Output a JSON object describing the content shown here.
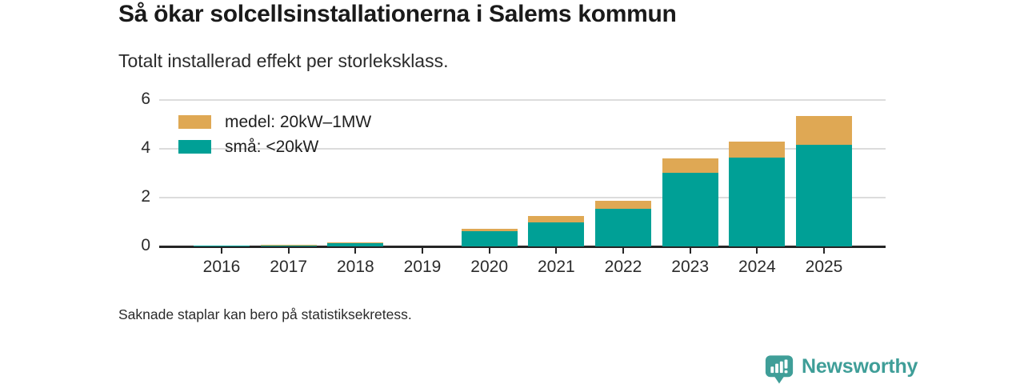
{
  "header": {
    "title": "Så ökar solcellsinstallationerna i Salems kommun",
    "subtitle": "Totalt installerad effekt per storleksklass."
  },
  "footer": {
    "note": "Saknade staplar kan bero på statistiksekretess.",
    "brand_name": "Newsworthy"
  },
  "colors": {
    "small": "#00a096",
    "medium": "#dfa854",
    "grid": "#dcdcdc",
    "axis": "#252525",
    "brand_teal": "#3f9e98"
  },
  "chart_data": {
    "type": "bar",
    "stacked": true,
    "grid": true,
    "legend_position": "top-left",
    "categories": [
      "2016",
      "2017",
      "2018",
      "2019",
      "2020",
      "2021",
      "2022",
      "2023",
      "2024",
      "2025"
    ],
    "series": [
      {
        "name": "medel: 20kW–1MW",
        "color_key": "medium",
        "values": [
          0,
          0.05,
          0.03,
          0,
          0.09,
          0.28,
          0.33,
          0.6,
          0.66,
          1.18
        ]
      },
      {
        "name": "små: <20kW",
        "color_key": "small",
        "values": [
          0.04,
          0.03,
          0.14,
          0,
          0.62,
          0.98,
          1.55,
          3.02,
          3.65,
          4.15
        ]
      }
    ],
    "ylim": [
      0,
      6
    ],
    "yticks": [
      0,
      2,
      4,
      6
    ],
    "xlabel": "",
    "ylabel": ""
  }
}
